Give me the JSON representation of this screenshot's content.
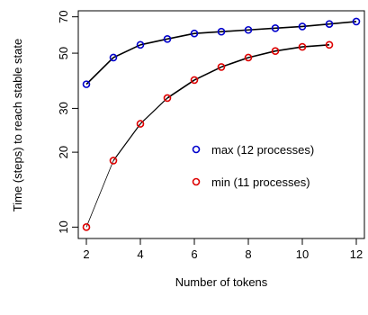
{
  "chart_data": {
    "type": "line",
    "xlabel": "Number of tokens",
    "ylabel": "Time (steps) to reach stable state",
    "y_scale": "log",
    "xlim": [
      1.7,
      12.3
    ],
    "ylim": [
      9,
      74
    ],
    "x_ticks": [
      2,
      4,
      6,
      8,
      10,
      12
    ],
    "y_ticks": [
      10,
      20,
      30,
      50,
      70
    ],
    "grid": false,
    "legend_position": "inside right",
    "series": [
      {
        "name": "max (12 processes)",
        "color": "#0000cc",
        "x": [
          2,
          3,
          4,
          5,
          6,
          7,
          8,
          9,
          10,
          11,
          12
        ],
        "y": [
          37.5,
          48,
          54,
          57,
          60,
          61,
          62,
          63,
          64,
          65.5,
          67
        ]
      },
      {
        "name": "min (11 processes)",
        "color": "#dd0000",
        "x": [
          2,
          3,
          4,
          5,
          6,
          7,
          8,
          9,
          10,
          11
        ],
        "y": [
          10,
          18.5,
          26,
          33,
          39,
          44,
          48,
          51,
          53,
          54
        ]
      }
    ]
  }
}
